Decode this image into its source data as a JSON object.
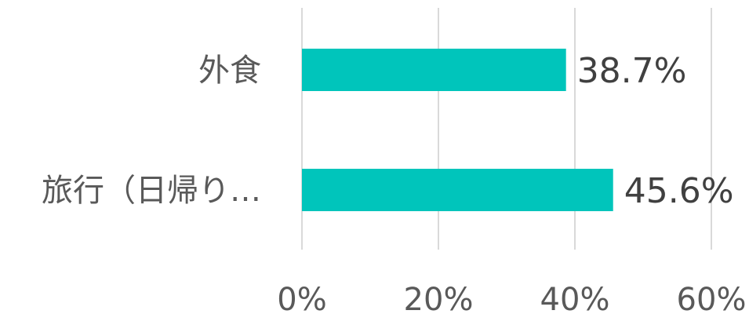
{
  "chart_data": {
    "type": "bar",
    "orientation": "horizontal",
    "categories": [
      "外食",
      "旅行（日帰り…"
    ],
    "values": [
      38.7,
      45.6
    ],
    "value_labels": [
      "38.7%",
      "45.6%"
    ],
    "xlim": [
      0,
      60
    ],
    "x_ticks": [
      0,
      20,
      40,
      60
    ],
    "x_tick_labels": [
      "0%",
      "20%",
      "40%",
      "60%"
    ],
    "grid": true,
    "legend": "none",
    "colors": {
      "bar": "#00C5BB",
      "grid": "#D9D9D9",
      "text": "#595959"
    }
  }
}
